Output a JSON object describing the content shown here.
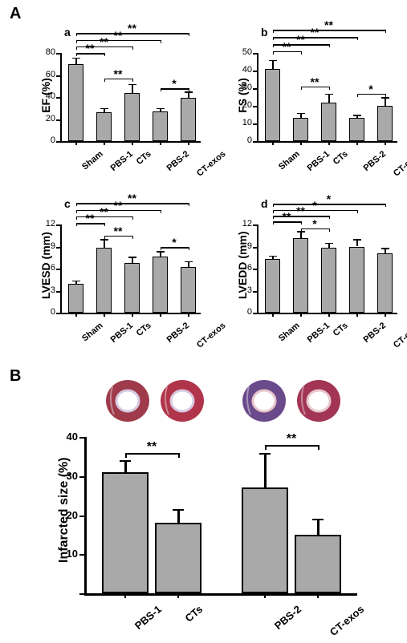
{
  "panelA_label": "A",
  "panelB_label": "B",
  "charts": {
    "a": {
      "sub": "a",
      "ylabel": "EF (%)",
      "ymax": 80,
      "ytick": 20,
      "groups": [
        "Sham",
        "PBS-1",
        "CTs",
        "PBS-2",
        "CT-exos"
      ],
      "values": [
        70,
        26,
        44,
        27,
        39
      ],
      "errs": [
        6,
        4,
        8,
        3,
        6
      ],
      "sig": [
        {
          "from": 0,
          "to": 1,
          "y": 80,
          "t": "**"
        },
        {
          "from": 0,
          "to": 2,
          "y": 86,
          "t": "**"
        },
        {
          "from": 0,
          "to": 3,
          "y": 92,
          "t": "**"
        },
        {
          "from": 0,
          "to": 4,
          "y": 98,
          "t": "**"
        },
        {
          "from": 1,
          "to": 2,
          "y": 57,
          "t": "**"
        },
        {
          "from": 3,
          "to": 4,
          "y": 48,
          "t": "*"
        }
      ]
    },
    "b": {
      "sub": "b",
      "ylabel": "FS (%)",
      "ymax": 50,
      "ytick": 10,
      "groups": [
        "Sham",
        "PBS-1",
        "CTs",
        "PBS-2",
        "CT-exos"
      ],
      "values": [
        41,
        13,
        22,
        13,
        20
      ],
      "errs": [
        5,
        3,
        5,
        2,
        5
      ],
      "sig": [
        {
          "from": 0,
          "to": 1,
          "y": 51,
          "t": "**"
        },
        {
          "from": 0,
          "to": 2,
          "y": 55,
          "t": "**"
        },
        {
          "from": 0,
          "to": 3,
          "y": 59,
          "t": "**"
        },
        {
          "from": 0,
          "to": 4,
          "y": 63,
          "t": "**"
        },
        {
          "from": 1,
          "to": 2,
          "y": 31,
          "t": "**"
        },
        {
          "from": 3,
          "to": 4,
          "y": 27,
          "t": "*"
        }
      ]
    },
    "c": {
      "sub": "c",
      "ylabel": "LVESD (mm)",
      "ymax": 12,
      "ytick": 3,
      "groups": [
        "Sham",
        "PBS-1",
        "CTs",
        "PBS-2",
        "CT-exos"
      ],
      "values": [
        3.9,
        8.8,
        6.8,
        7.6,
        6.2
      ],
      "errs": [
        0.5,
        1.2,
        0.8,
        0.8,
        0.8
      ],
      "sig": [
        {
          "from": 0,
          "to": 1,
          "y": 12.2,
          "t": "**"
        },
        {
          "from": 0,
          "to": 2,
          "y": 13.1,
          "t": "**"
        },
        {
          "from": 0,
          "to": 3,
          "y": 14.0,
          "t": "**"
        },
        {
          "from": 0,
          "to": 4,
          "y": 14.9,
          "t": "**"
        },
        {
          "from": 1,
          "to": 2,
          "y": 10.5,
          "t": "**"
        },
        {
          "from": 3,
          "to": 4,
          "y": 8.9,
          "t": "*"
        }
      ]
    },
    "d": {
      "sub": "d",
      "ylabel": "LVEDD (mm)",
      "ymax": 12,
      "ytick": 3,
      "groups": [
        "Sham",
        "PBS-1",
        "CTs",
        "PBS-2",
        "CT-exos"
      ],
      "values": [
        7.3,
        10.2,
        8.8,
        9.0,
        8.1
      ],
      "errs": [
        0.5,
        0.9,
        0.7,
        1.0,
        0.7
      ],
      "sig": [
        {
          "from": 0,
          "to": 1,
          "y": 12.4,
          "t": "**"
        },
        {
          "from": 0,
          "to": 2,
          "y": 13.2,
          "t": "**"
        },
        {
          "from": 0,
          "to": 3,
          "y": 14.0,
          "t": "*"
        },
        {
          "from": 0,
          "to": 4,
          "y": 14.8,
          "t": "*"
        },
        {
          "from": 1,
          "to": 2,
          "y": 11.5,
          "t": "*"
        }
      ]
    }
  },
  "panelB": {
    "ylabel": "Infarcted size (%)",
    "ymax": 40,
    "ytick": 10,
    "ymin_shown": 0,
    "groups": [
      "PBS-1",
      "CTs",
      "PBS-2",
      "CT-exos"
    ],
    "values": [
      31,
      18,
      27,
      15
    ],
    "errs": [
      3,
      3.5,
      9,
      4
    ],
    "sig": [
      {
        "from": 0,
        "to": 1,
        "y": 36,
        "t": "**"
      },
      {
        "from": 2,
        "to": 3,
        "y": 38,
        "t": "**"
      }
    ],
    "heart_colors": [
      "#9e3a4a",
      "#b0344a",
      "#6a4a8a",
      "#a23555"
    ]
  },
  "style": {
    "bar_fill": "#a9a9a9",
    "axis_color": "#000000",
    "bg": "#ffffff",
    "font": "Arial"
  }
}
